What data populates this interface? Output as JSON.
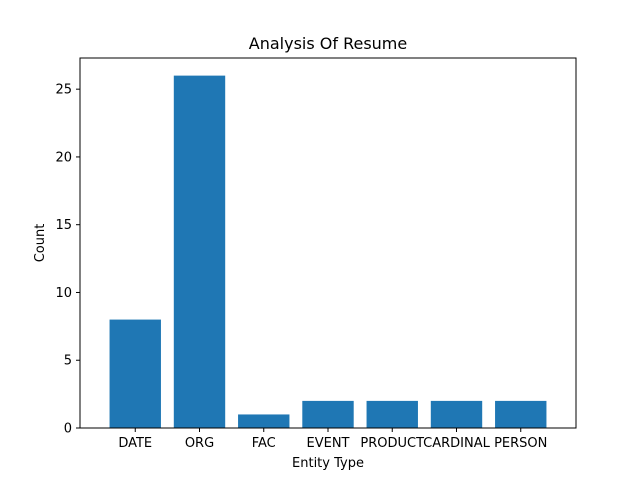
{
  "chart_data": {
    "type": "bar",
    "title": "Analysis Of Resume",
    "xlabel": "Entity Type",
    "ylabel": "Count",
    "categories": [
      "DATE",
      "ORG",
      "FAC",
      "EVENT",
      "PRODUCT",
      "CARDINAL",
      "PERSON"
    ],
    "values": [
      8,
      26,
      1,
      2,
      2,
      2,
      2
    ],
    "ylim": [
      0,
      27.3
    ],
    "yticks": [
      0,
      5,
      10,
      15,
      20,
      25
    ],
    "grid": false,
    "bar_color": "#1f77b4"
  }
}
